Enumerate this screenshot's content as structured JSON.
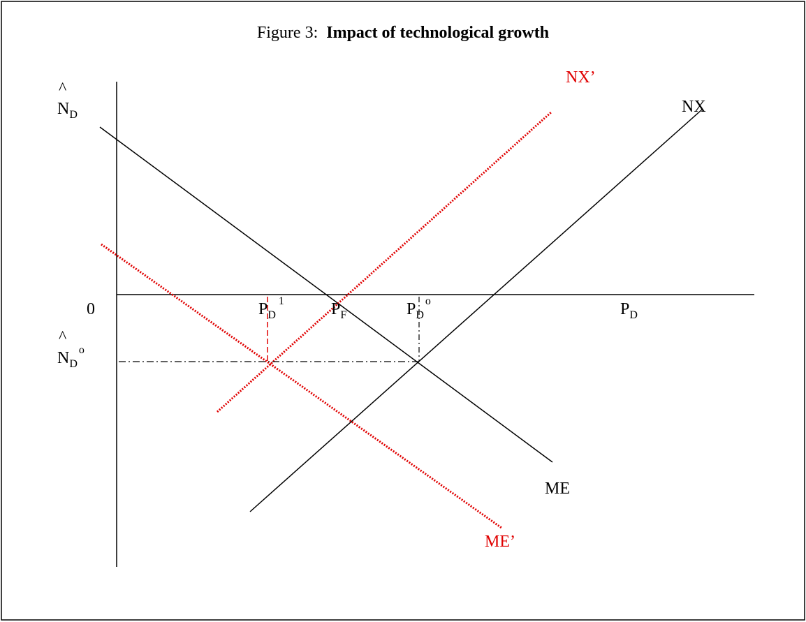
{
  "title": {
    "prefix": "Figure 3:",
    "text": "Impact of technological growth"
  },
  "axes": {
    "y_label": {
      "hat": "^",
      "main": "N",
      "sub": "D"
    },
    "origin": "0",
    "x_label": {
      "main": "P",
      "sub": "D"
    }
  },
  "points": {
    "pd1": {
      "main": "P",
      "sub": "D",
      "sup": "1"
    },
    "pf": {
      "main": "P",
      "sub": "F"
    },
    "pd0": {
      "main": "P",
      "sub": "D",
      "sup": "o"
    },
    "nd0": {
      "hat": "^",
      "main": "N",
      "sub": "D",
      "sup": "o"
    }
  },
  "curves": {
    "nx_new": "NX’",
    "nx": "NX",
    "me": "ME",
    "me_new": "ME’"
  }
}
